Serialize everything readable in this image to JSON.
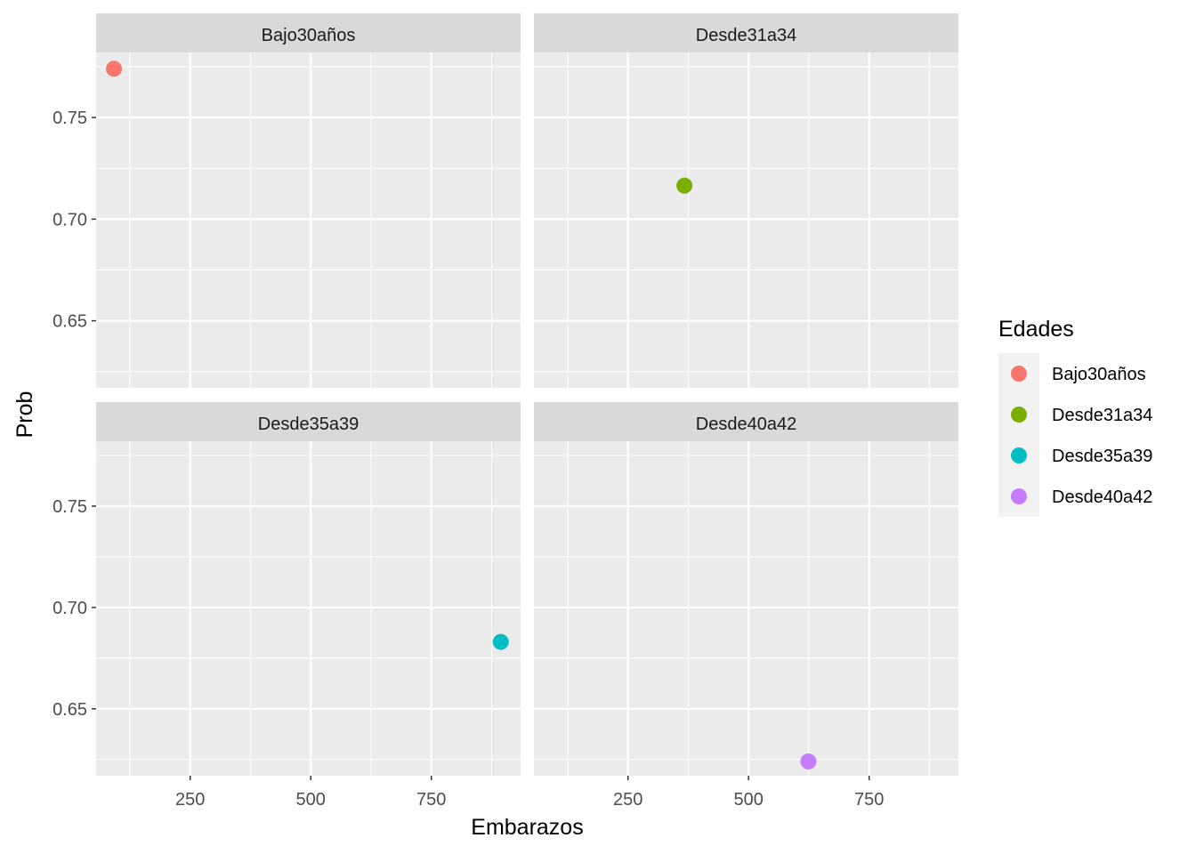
{
  "chart_data": {
    "type": "scatter",
    "faceted": true,
    "xlabel": "Embarazos",
    "ylabel": "Prob",
    "xlim": [
      55,
      935
    ],
    "ylim": [
      0.617,
      0.782
    ],
    "x_ticks": [
      250,
      500,
      750
    ],
    "x_tick_labels": [
      "250",
      "500",
      "750"
    ],
    "y_ticks": [
      0.65,
      0.7,
      0.75
    ],
    "y_tick_labels": [
      "0.65",
      "0.70",
      "0.75"
    ],
    "grid": true,
    "legend": {
      "title": "Edades",
      "placement": "right",
      "entries": [
        {
          "label": "Bajo30años",
          "color": "#F8766D"
        },
        {
          "label": "Desde31a34",
          "color": "#7CAE00"
        },
        {
          "label": "Desde35a39",
          "color": "#00BFC4"
        },
        {
          "label": "Desde40a42",
          "color": "#C77CFF"
        }
      ]
    },
    "panels": [
      {
        "title": "Bajo30años",
        "color": "#F8766D",
        "points": [
          {
            "x": 92,
            "y": 0.774
          }
        ]
      },
      {
        "title": "Desde31a34",
        "color": "#7CAE00",
        "points": [
          {
            "x": 367,
            "y": 0.7165
          }
        ]
      },
      {
        "title": "Desde35a39",
        "color": "#00BFC4",
        "points": [
          {
            "x": 894,
            "y": 0.683
          }
        ]
      },
      {
        "title": "Desde40a42",
        "color": "#C77CFF",
        "points": [
          {
            "x": 624,
            "y": 0.624
          }
        ]
      }
    ]
  }
}
